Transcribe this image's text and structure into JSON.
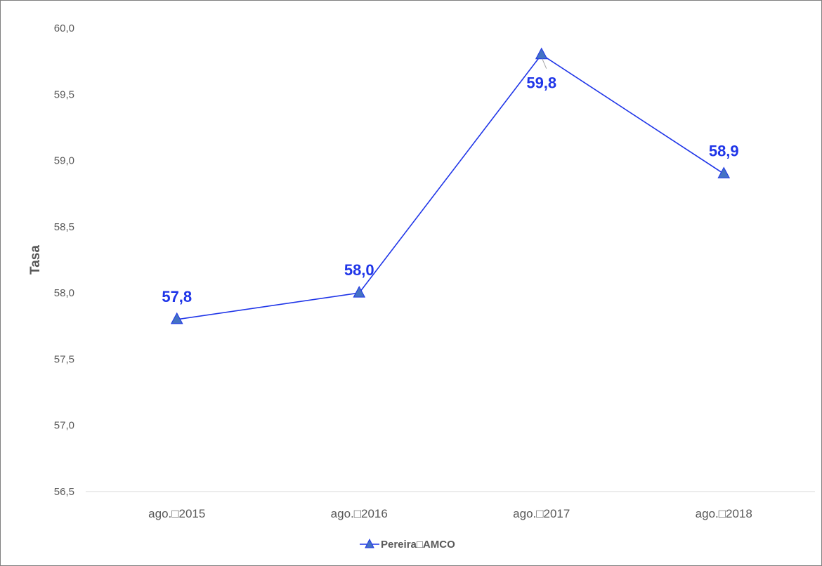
{
  "chart_data": {
    "type": "line",
    "categories": [
      "ago.□2015",
      "ago.□2016",
      "ago.□2017",
      "ago.□2018"
    ],
    "series": [
      {
        "name": "Pereira□AMCO",
        "values": [
          57.8,
          58.0,
          59.8,
          58.9
        ],
        "labels": [
          "57,8",
          "58,0",
          "59,8",
          "58,9"
        ],
        "color": "#1f35e8",
        "marker": "triangle",
        "marker_fill": "#4472c4"
      }
    ],
    "ylabel": "Tasa",
    "xlabel": "",
    "ylim": [
      56.5,
      60.0
    ],
    "yticks": [
      56.5,
      57.0,
      57.5,
      58.0,
      58.5,
      59.0,
      59.5,
      60.0
    ],
    "ytick_labels": [
      "56,5",
      "57,0",
      "57,5",
      "58,0",
      "58,5",
      "59,0",
      "59,5",
      "60,0"
    ],
    "grid": false,
    "legend_position": "bottom"
  }
}
